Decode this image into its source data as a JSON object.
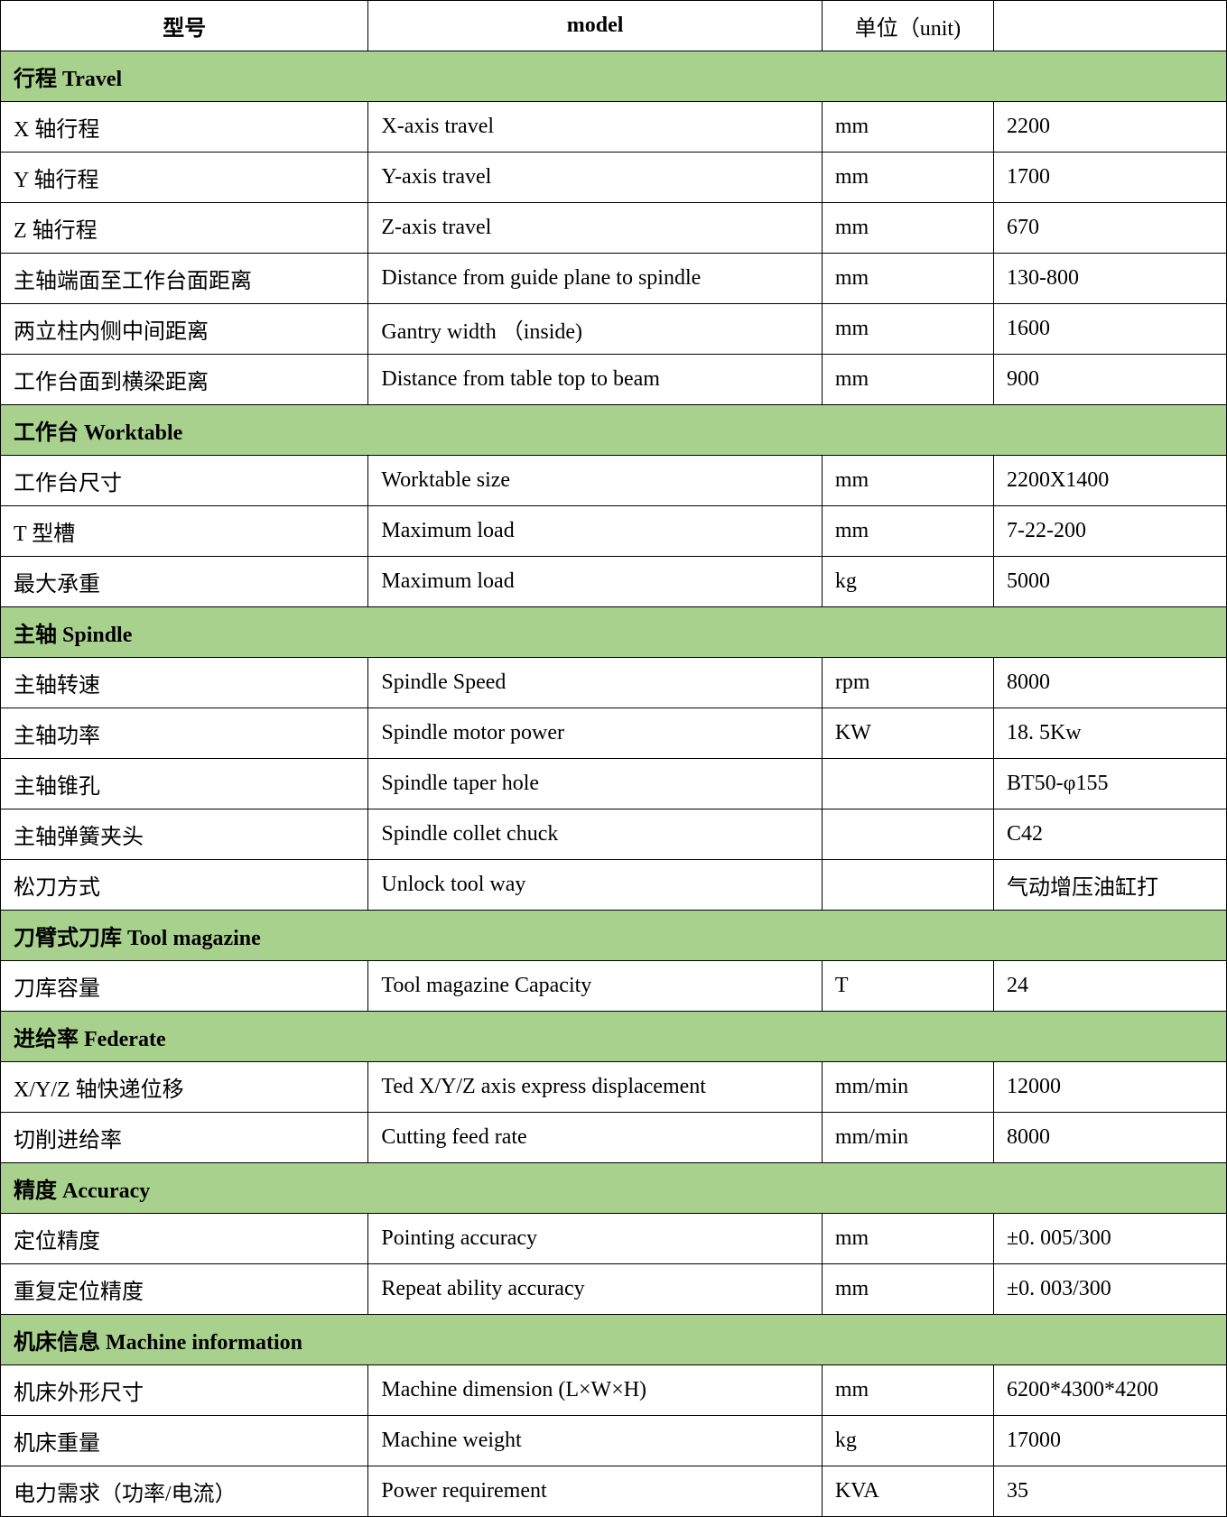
{
  "colors": {
    "section_bg": "#a9d18e",
    "row_bg": "#ffffff",
    "text": "#000000",
    "border": "#000000"
  },
  "font": {
    "family": "Times New Roman, SimSun, serif",
    "size_pt": 18
  },
  "column_widths_pct": [
    30,
    37,
    14,
    19
  ],
  "header": {
    "col1": "型号",
    "col2": "model",
    "col3": "单位（unit)",
    "col4": ""
  },
  "sections": [
    {
      "title": "行程 Travel",
      "rows": [
        {
          "cn": "X 轴行程",
          "en": "X-axis travel",
          "unit": "mm",
          "value": "2200"
        },
        {
          "cn": "Y 轴行程",
          "en": "Y-axis travel",
          "unit": "mm",
          "value": "1700"
        },
        {
          "cn": "Z 轴行程",
          "en": "Z-axis travel",
          "unit": "mm",
          "value": "670"
        },
        {
          "cn": "主轴端面至工作台面距离",
          "en": "Distance from guide plane to spindle",
          "unit": "mm",
          "value": "130-800"
        },
        {
          "cn": "两立柱内侧中间距离",
          "en": "Gantry width  （inside)",
          "unit": "mm",
          "value": "1600"
        },
        {
          "cn": "工作台面到横梁距离",
          "en": "Distance from table top to beam",
          "unit": "mm",
          "value": "900"
        }
      ]
    },
    {
      "title": "工作台 Worktable",
      "rows": [
        {
          "cn": "工作台尺寸",
          "en": "Worktable size",
          "unit": "mm",
          "value": "2200X1400"
        },
        {
          "cn": "T 型槽",
          "en": "Maximum load",
          "unit": "mm",
          "value": "7-22-200"
        },
        {
          "cn": "最大承重",
          "en": "Maximum load",
          "unit": " kg",
          "value": "5000"
        }
      ]
    },
    {
      "title": "主轴 Spindle",
      "rows": [
        {
          "cn": "主轴转速",
          "en": "Spindle Speed",
          "unit": "rpm",
          "value": "8000"
        },
        {
          "cn": "主轴功率",
          "en": "Spindle motor power",
          "unit": "KW",
          "value": "18. 5Kw"
        },
        {
          "cn": "主轴锥孔",
          "en": "Spindle taper hole",
          "unit": "",
          "value": "BT50-φ155"
        },
        {
          "cn": "主轴弹簧夹头",
          "en": "Spindle collet chuck",
          "unit": "",
          "value": "C42"
        },
        {
          "cn": "松刀方式",
          "en": "Unlock tool way",
          "unit": "",
          "value": "气动增压油缸打"
        }
      ]
    },
    {
      "title": "刀臂式刀库 Tool magazine",
      "rows": [
        {
          "cn": "刀库容量",
          "en": "Tool magazine Capacity",
          "unit": "T",
          "value": "24"
        }
      ]
    },
    {
      "title": "进给率 Federate",
      "rows": [
        {
          "cn": "X/Y/Z 轴快递位移",
          "en": "Ted X/Y/Z axis express displacement",
          "unit": "mm/min",
          "value": "12000"
        },
        {
          "cn": "切削进给率",
          "en": "Cutting feed rate",
          "unit": "mm/min",
          "value": "8000"
        }
      ]
    },
    {
      "title": "精度 Accuracy",
      "rows": [
        {
          "cn": "定位精度",
          "en": "Pointing accuracy",
          "unit": "mm",
          "value": "±0. 005/300"
        },
        {
          "cn": "重复定位精度",
          "en": "Repeat ability accuracy",
          "unit": "mm",
          "value": "±0. 003/300"
        }
      ]
    },
    {
      "title": "机床信息 Machine information",
      "rows": [
        {
          "cn": "机床外形尺寸",
          "en": "Machine dimension (L×W×H)",
          "unit": "mm",
          "value": "6200*4300*4200"
        },
        {
          "cn": "机床重量",
          "en": "Machine weight",
          "unit": "kg",
          "value": "17000"
        },
        {
          "cn": "电力需求（功率/电流）",
          "en": "Power requirement",
          "unit": "KVA",
          "value": "35"
        }
      ]
    }
  ]
}
